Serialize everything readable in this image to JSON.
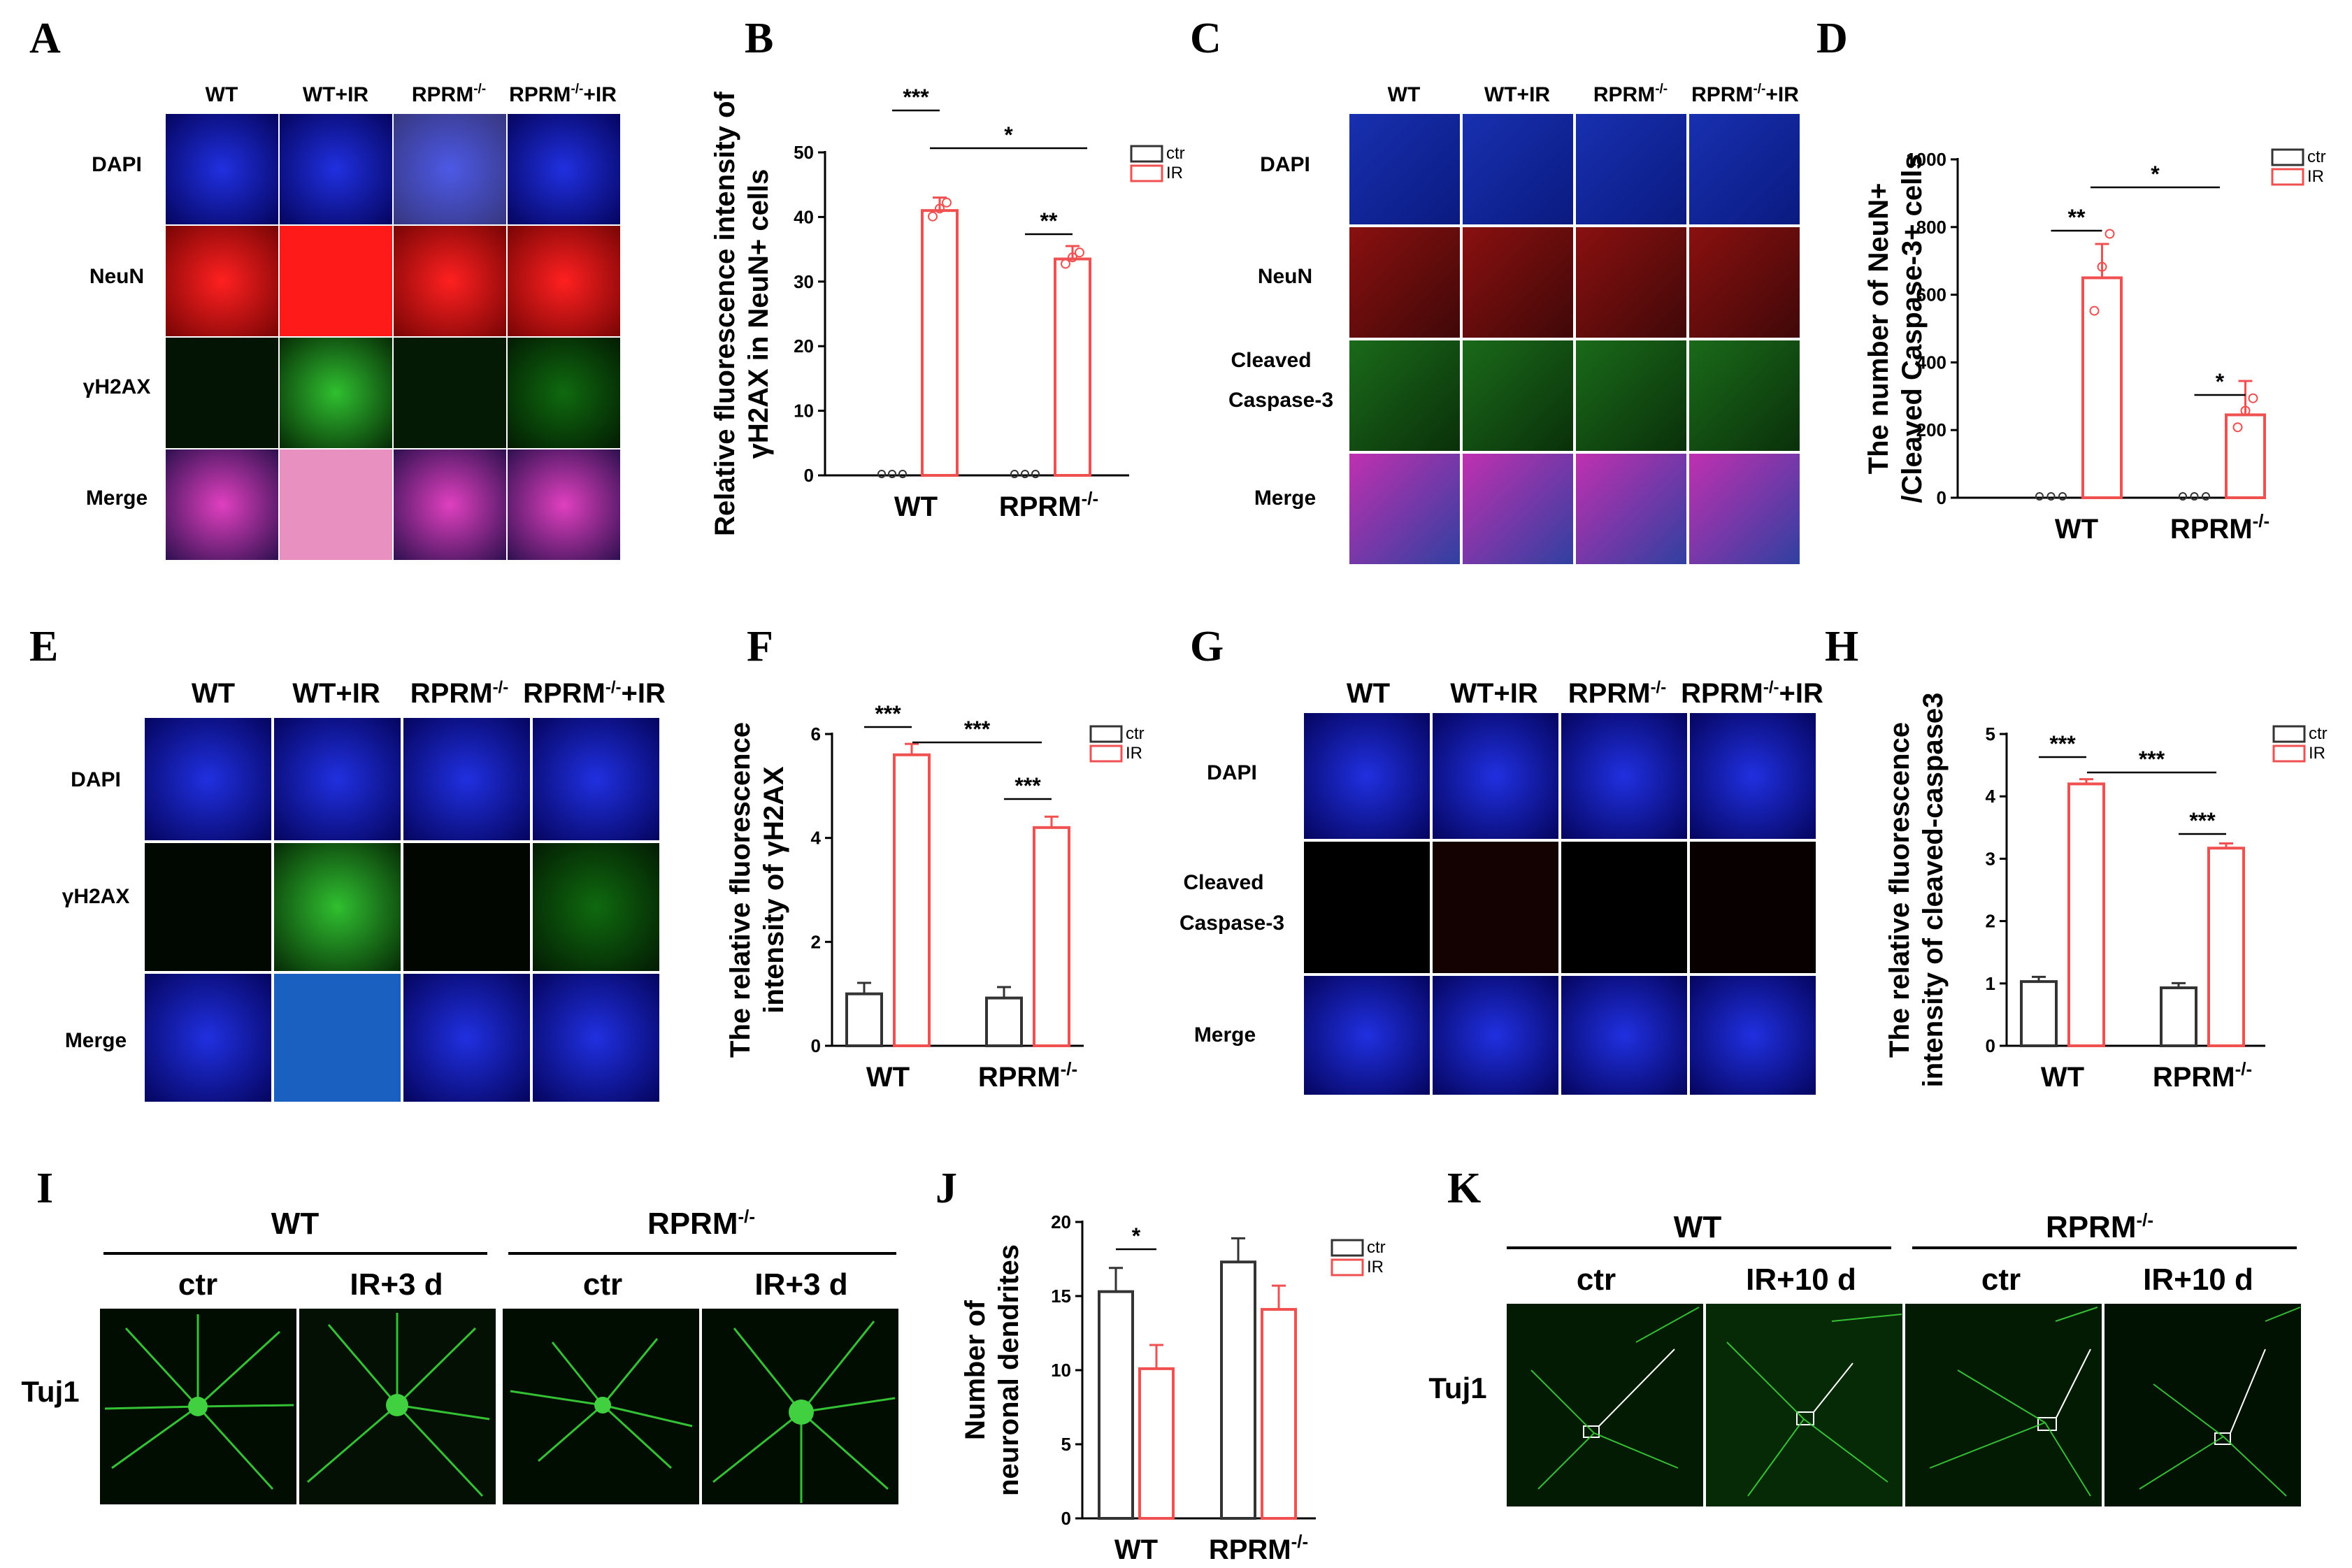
{
  "panel_letters": [
    "A",
    "B",
    "C",
    "D",
    "E",
    "F",
    "G",
    "H",
    "I",
    "J",
    "K"
  ],
  "panel_A": {
    "columns": [
      "WT",
      "WT+IR",
      "RPRM-/-",
      "RPRM-/-+IR"
    ],
    "rows": [
      "DAPI",
      "NeuN",
      "γH2AX",
      "Merge"
    ]
  },
  "panel_C": {
    "columns": [
      "WT",
      "WT+IR",
      "RPRM-/-",
      "RPRM-/-+IR"
    ],
    "rows": [
      "DAPI",
      "NeuN",
      "Cleaved Caspase-3",
      "Merge"
    ],
    "row_cleaved_1": "Cleaved",
    "row_cleaved_2": "Caspase-3"
  },
  "panel_E": {
    "columns": [
      "WT",
      "WT+IR",
      "RPRM-/-",
      "RPRM-/-+IR"
    ],
    "rows": [
      "DAPI",
      "γH2AX",
      "Merge"
    ]
  },
  "panel_G": {
    "columns": [
      "WT",
      "WT+IR",
      "RPRM-/-",
      "RPRM-/-+IR"
    ],
    "rows": [
      "DAPI",
      "Cleaved Caspase-3",
      "Merge"
    ],
    "row_cleaved_1": "Cleaved",
    "row_cleaved_2": "Caspase-3"
  },
  "panel_I": {
    "groups": [
      "WT",
      "RPRM-/-"
    ],
    "columns": [
      "ctr",
      "IR+3 d",
      "ctr",
      "IR+3 d"
    ],
    "row": "Tuj1"
  },
  "panel_K": {
    "groups": [
      "WT",
      "RPRM-/-"
    ],
    "columns": [
      "ctr",
      "IR+10 d",
      "ctr",
      "IR+10 d"
    ],
    "row": "Tuj1"
  },
  "colors": {
    "ctr": "#333333",
    "ir": "#f05050",
    "dapi": "#1010c8",
    "neun": "#e01010",
    "green": "#10a010"
  },
  "legend": {
    "ctr": "ctr",
    "ir": "IR"
  },
  "chart_data": [
    {
      "panel": "B",
      "type": "bar",
      "categories": [
        "WT",
        "RPRM-/-"
      ],
      "series": [
        {
          "name": "ctr",
          "values": [
            0,
            0
          ]
        },
        {
          "name": "IR",
          "values": [
            41,
            33.5
          ]
        }
      ],
      "ylabel_lines": [
        "Relative fluorescence intensity of",
        "γH2AX in NeuN+ cells"
      ],
      "ylim": [
        0,
        50
      ],
      "yticks": [
        0,
        10,
        20,
        30,
        40,
        50
      ],
      "significance": [
        {
          "text": "***",
          "between": "WT ctr vs WT IR"
        },
        {
          "text": "**",
          "between": "RPRM-/- ctr vs RPRM-/- IR"
        },
        {
          "text": "*",
          "between": "WT IR vs RPRM-/- IR"
        }
      ]
    },
    {
      "panel": "D",
      "type": "bar",
      "categories": [
        "WT",
        "RPRM-/-"
      ],
      "series": [
        {
          "name": "ctr",
          "values": [
            0,
            0
          ]
        },
        {
          "name": "IR",
          "values": [
            650,
            245
          ]
        }
      ],
      "ylabel_lines": [
        "The number of NeuN+",
        "/Cleaved Caspase-3+ cells"
      ],
      "ylim": [
        0,
        1000
      ],
      "yticks": [
        0,
        200,
        400,
        600,
        800,
        1000
      ],
      "significance": [
        {
          "text": "**",
          "between": "WT ctr vs WT IR"
        },
        {
          "text": "*",
          "between": "RPRM-/- ctr vs RPRM-/- IR"
        },
        {
          "text": "*",
          "between": "WT IR vs RPRM-/- IR"
        }
      ]
    },
    {
      "panel": "F",
      "type": "bar",
      "categories": [
        "WT",
        "RPRM-/-"
      ],
      "series": [
        {
          "name": "ctr",
          "values": [
            1.0,
            0.92
          ]
        },
        {
          "name": "IR",
          "values": [
            5.6,
            4.2
          ]
        }
      ],
      "ylabel_lines": [
        "The relative fluorescence",
        "intensity of  γH2AX"
      ],
      "ylim": [
        0,
        6
      ],
      "yticks": [
        0,
        2,
        4,
        6
      ],
      "significance": [
        {
          "text": "***",
          "between": "WT ctr vs WT IR"
        },
        {
          "text": "***",
          "between": "RPRM-/- ctr vs RPRM-/- IR"
        },
        {
          "text": "***",
          "between": "WT IR vs RPRM-/- IR"
        }
      ]
    },
    {
      "panel": "H",
      "type": "bar",
      "categories": [
        "WT",
        "RPRM-/-"
      ],
      "series": [
        {
          "name": "ctr",
          "values": [
            1.03,
            0.93
          ]
        },
        {
          "name": "IR",
          "values": [
            4.2,
            3.17
          ]
        }
      ],
      "ylabel_lines": [
        "The relative fluorescence",
        "intensity of cleaved-caspase3"
      ],
      "ylim": [
        0,
        5
      ],
      "yticks": [
        0,
        1,
        2,
        3,
        4,
        5
      ],
      "significance": [
        {
          "text": "***",
          "between": "WT ctr vs WT IR"
        },
        {
          "text": "***",
          "between": "RPRM-/- ctr vs RPRM-/- IR"
        },
        {
          "text": "***",
          "between": "WT IR vs RPRM-/- IR"
        }
      ]
    },
    {
      "panel": "J",
      "type": "bar",
      "categories": [
        "WT",
        "RPRM-/-"
      ],
      "series": [
        {
          "name": "ctr",
          "values": [
            15.3,
            17.3
          ]
        },
        {
          "name": "IR",
          "values": [
            10.1,
            14.1
          ]
        }
      ],
      "ylabel_lines": [
        "Number of",
        "neuronal dendrites"
      ],
      "ylim": [
        0,
        20
      ],
      "yticks": [
        0,
        5,
        10,
        15,
        20
      ],
      "significance": [
        {
          "text": "*",
          "between": "WT ctr vs WT IR"
        }
      ]
    }
  ]
}
